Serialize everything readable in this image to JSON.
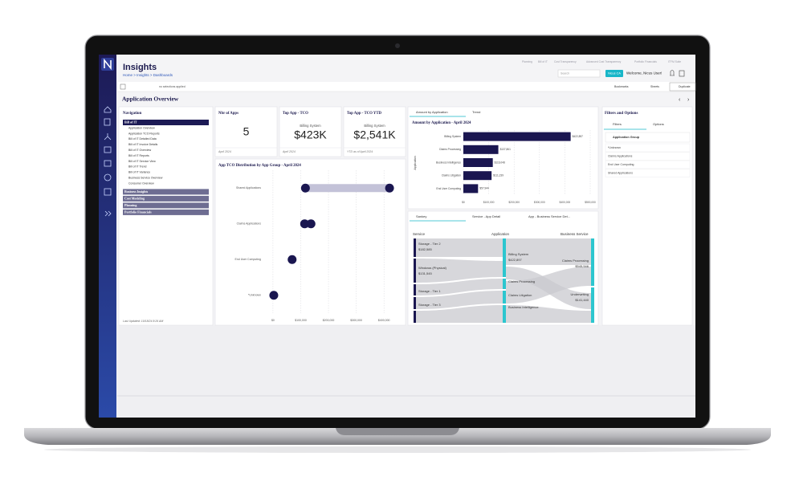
{
  "header": {
    "title": "Insights",
    "breadcrumb": "Home > Insights > Dashboards",
    "nav": [
      "Planning",
      "Bill of IT",
      "Cost Transparency",
      "Advanced Cost Transparency",
      "Portfolio Financials",
      "ITFM Suite"
    ],
    "search": "Search",
    "user_badge": "Nicus CA",
    "welcome": "Welcome, Nicus User!"
  },
  "toolbar": {
    "status": "no selections applied",
    "bookmarks": "Bookmarks",
    "sheets": "Sheets",
    "duplicate": "Duplicate"
  },
  "page_title": "Application Overview",
  "navigation": {
    "title": "Navigation",
    "sections": [
      {
        "label": "Bill of IT",
        "items": [
          "Application Overview",
          "Application TCO Reports",
          "Bill of IT Detailed Data",
          "Bill of IT Invoice Details",
          "Bill of IT Overview",
          "Bill of IT Reports",
          "Bill of IT Service View",
          "Bill of IT Trend",
          "Bill of IT Variance",
          "Business Service Overview",
          "Consumer Overview"
        ]
      },
      {
        "label": "Business Insights"
      },
      {
        "label": "Cost Modeling"
      },
      {
        "label": "Planning"
      },
      {
        "label": "Portfolio Financials"
      }
    ],
    "last_updated": "Last Updated: 10/18/24 8:26 AM"
  },
  "kpis": [
    {
      "title": "Nbr of Apps",
      "value": "5",
      "footer": "April 2024"
    },
    {
      "title": "Top App - TCO",
      "subtitle": "Billing System",
      "value": "$423K",
      "footer": "April 2024"
    },
    {
      "title": "Top App - TCO YTD",
      "subtitle": "Billing System",
      "value": "$2,541K",
      "footer": "YTD as of April 2024"
    }
  ],
  "chart_data": [
    {
      "type": "dot",
      "title": "App TCO Distribution by App Group - April 2024",
      "categories": [
        "Shared Applications",
        "Claims Applications",
        "End User Computing",
        "*Unknown"
      ],
      "series": [
        {
          "color": "#1a1650",
          "values": [
            117000,
            114000,
            69000,
            3000
          ]
        },
        {
          "color": "#1a1650",
          "values": [
            420000,
            137000,
            null,
            null
          ]
        }
      ],
      "range_color": "#c3c2d8",
      "xlim": [
        -20000,
        440000
      ],
      "xticks": [
        {
          "value": 0,
          "label": "$0"
        },
        {
          "value": 100000,
          "label": "$100,000"
        },
        {
          "value": 200000,
          "label": "$200,000"
        },
        {
          "value": 300000,
          "label": "$300,000"
        },
        {
          "value": 400000,
          "label": "$400,000"
        }
      ],
      "grid": true
    },
    {
      "type": "hbar",
      "title": "Amount by Application - April 2024",
      "y_label": "Application",
      "categories": [
        "Billing System",
        "Claims Processing",
        "Business Intelligence",
        "Claims Litigation",
        "End User Computing"
      ],
      "values": [
        422897,
        137861,
        116048,
        111239,
        57944
      ],
      "value_labels": [
        "$422,897",
        "$137,861",
        "$116,048",
        "$111,239",
        "$57,944"
      ],
      "color": "#1a1650",
      "xlim": [
        0,
        500000
      ],
      "xticks": [
        {
          "value": 0,
          "label": "$0"
        },
        {
          "value": 100000,
          "label": "$100,000"
        },
        {
          "value": 200000,
          "label": "$200,000"
        },
        {
          "value": 300000,
          "label": "$300,000"
        },
        {
          "value": 400000,
          "label": "$400,000"
        },
        {
          "value": 500000,
          "label": "$500,000"
        }
      ],
      "grid": true
    }
  ],
  "amount_tabs": [
    "Amount by Application",
    "Trend"
  ],
  "sankey": {
    "tabs": [
      "Sankey",
      "Service - App Detail",
      "App - Business Service Det..."
    ],
    "columns": [
      "Service",
      "Application",
      "Business Service"
    ],
    "labels": [
      "Storage - Tier 2",
      "$182,585",
      "Windows (Physical)",
      "$131,545",
      "Storage - Tier 1",
      "Storage - Tier 3",
      "Billing System",
      "$422,897",
      "Claims Processing",
      "Claims Litigation",
      "Business Intelligence",
      "Claims Processing",
      "$545,546",
      "Underwriting",
      "$141,440"
    ]
  },
  "filters": {
    "title": "Filters and Options",
    "tabs": [
      "Filters",
      "Options"
    ],
    "group": "Application Group",
    "items": [
      "*Unknown",
      "Claims Applications",
      "End User Computing",
      "Shared Applications"
    ]
  }
}
